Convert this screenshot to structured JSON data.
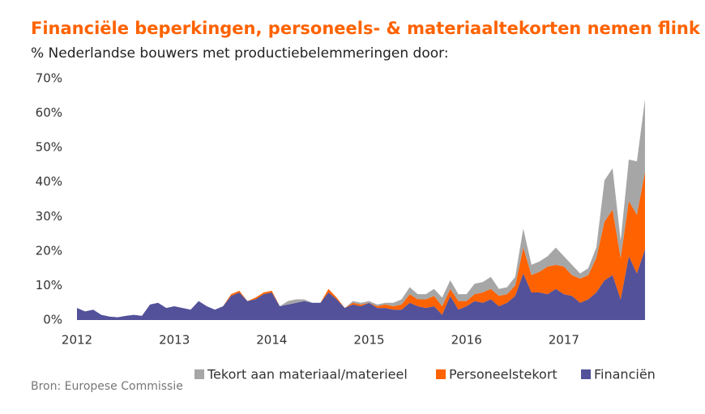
{
  "chart_data": {
    "type": "stacked_area",
    "title": "Financiële beperkingen, personeels- & materiaaltekorten nemen flink toe",
    "subtitle": "% Nederlandse  bouwers met productiebelemmeringen  door:",
    "source": "Bron: Europese Commissie",
    "x": [
      2012,
      2012.083,
      2012.167,
      2012.25,
      2012.333,
      2012.417,
      2012.5,
      2012.583,
      2012.667,
      2012.75,
      2012.833,
      2012.917,
      2013,
      2013.083,
      2013.167,
      2013.25,
      2013.333,
      2013.417,
      2013.5,
      2013.583,
      2013.667,
      2013.75,
      2013.833,
      2013.917,
      2014,
      2014.083,
      2014.167,
      2014.25,
      2014.333,
      2014.417,
      2014.5,
      2014.583,
      2014.667,
      2014.75,
      2014.833,
      2014.917,
      2015,
      2015.083,
      2015.167,
      2015.25,
      2015.333,
      2015.417,
      2015.5,
      2015.583,
      2015.667,
      2015.75,
      2015.833,
      2015.917,
      2016,
      2016.083,
      2016.167,
      2016.25,
      2016.333,
      2016.417,
      2016.5,
      2016.583,
      2016.667,
      2016.75,
      2016.833,
      2016.917,
      2017,
      2017.083,
      2017.167,
      2017.25,
      2017.333,
      2017.417,
      2017.5,
      2017.583,
      2017.667,
      2017.75,
      2017.833
    ],
    "series": [
      {
        "name": "Financiën",
        "color": "#525199",
        "values": [
          3.5,
          2.5,
          3,
          1.5,
          1,
          0.8,
          1.2,
          1.5,
          1.2,
          4.5,
          5,
          3.5,
          4,
          3.5,
          3,
          5.5,
          4,
          3,
          4,
          7,
          8,
          5.5,
          6,
          7.5,
          8,
          4,
          4.5,
          5,
          5.5,
          5,
          5,
          8,
          6,
          3.5,
          4.5,
          4,
          5,
          3.5,
          3.5,
          3,
          3,
          5,
          4,
          3.5,
          4,
          1.5,
          7,
          3,
          4,
          5.5,
          5,
          6,
          4,
          5,
          7,
          13.5,
          8,
          8,
          7.5,
          9,
          7.5,
          7,
          5,
          6,
          8,
          11.5,
          13,
          6,
          18.5,
          13.5,
          20.5
        ]
      },
      {
        "name": "Personeelstekort",
        "color": "#ff6200",
        "values": [
          0,
          0,
          0,
          0,
          0,
          0,
          0,
          0,
          0,
          0,
          0,
          0,
          0,
          0,
          0,
          0,
          0,
          0,
          0,
          0.5,
          0.5,
          0,
          0.5,
          0.5,
          0.5,
          0,
          0,
          0,
          0,
          0,
          0,
          1,
          0.5,
          0,
          0.5,
          0.5,
          0,
          0.5,
          1,
          1,
          1.5,
          2.5,
          2,
          2.5,
          3,
          2.5,
          2,
          2.5,
          1.5,
          2,
          3,
          3,
          3,
          2.5,
          3,
          7.5,
          5,
          6,
          8,
          7,
          8,
          6,
          7,
          7,
          10,
          17,
          19,
          12,
          16,
          17,
          22.5
        ]
      },
      {
        "name": "Tekort aan materiaal/materieel",
        "color": "#a6a6a6",
        "values": [
          0,
          0,
          0,
          0,
          0,
          0,
          0,
          0,
          0,
          0,
          0,
          0,
          0,
          0,
          0,
          0,
          0,
          0,
          0,
          0,
          0,
          0,
          0,
          0,
          0,
          0,
          1,
          1,
          0.5,
          0,
          0,
          0,
          0,
          0,
          0.5,
          0.5,
          0.5,
          0.5,
          0.5,
          1,
          1.5,
          2,
          1.5,
          1.5,
          2,
          2.5,
          2.5,
          2,
          2,
          3,
          3,
          3.5,
          2,
          2,
          2.5,
          5.5,
          3,
          3,
          3,
          5,
          3,
          3,
          1.5,
          2,
          3,
          12,
          12,
          5,
          12,
          15.5,
          21
        ]
      }
    ],
    "xlim": [
      2012,
      2017.85
    ],
    "xticks": [
      2012,
      2013,
      2014,
      2015,
      2016,
      2017
    ],
    "ylim": [
      0,
      70
    ],
    "yticks": [
      {
        "value": 0,
        "label": "0%"
      },
      {
        "value": 10,
        "label": "10%"
      },
      {
        "value": 20,
        "label": "20%"
      },
      {
        "value": 30,
        "label": "30%"
      },
      {
        "value": 40,
        "label": "40%"
      },
      {
        "value": 50,
        "label": "50%"
      },
      {
        "value": 60,
        "label": "60%"
      },
      {
        "value": 70,
        "label": "70%"
      }
    ]
  }
}
